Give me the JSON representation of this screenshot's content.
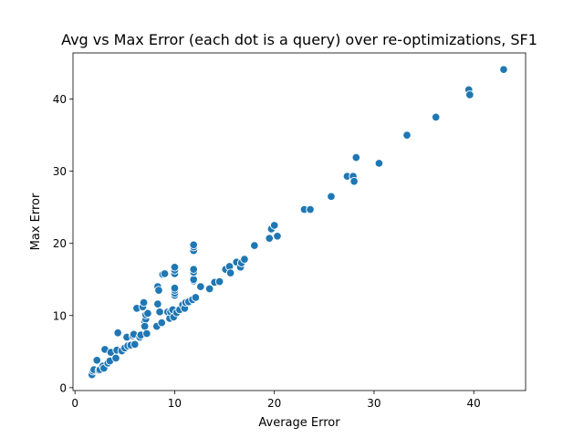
{
  "chart_data": {
    "type": "scatter",
    "title": "Avg vs Max Error (each dot is a query) over re-optimizations, SF1",
    "xlabel": "Average Error",
    "ylabel": "Max Error",
    "xlim": [
      -0.2,
      45.2
    ],
    "ylim": [
      -0.4,
      46.4
    ],
    "xticks": [
      0,
      10,
      20,
      30,
      40
    ],
    "yticks": [
      0,
      10,
      20,
      30,
      40
    ],
    "grid": false,
    "marker_color": "#1f77b4",
    "marker_edge": "#ffffff",
    "points": [
      [
        1.7,
        1.8
      ],
      [
        1.8,
        2.3
      ],
      [
        1.9,
        2.5
      ],
      [
        2.2,
        3.8
      ],
      [
        2.4,
        2.4
      ],
      [
        2.5,
        2.5
      ],
      [
        2.8,
        3.0
      ],
      [
        2.9,
        2.7
      ],
      [
        3.0,
        5.3
      ],
      [
        3.3,
        3.4
      ],
      [
        3.5,
        3.7
      ],
      [
        3.6,
        4.9
      ],
      [
        4.1,
        4.1
      ],
      [
        4.2,
        5.2
      ],
      [
        4.3,
        7.6
      ],
      [
        4.7,
        5.1
      ],
      [
        5.0,
        5.5
      ],
      [
        5.2,
        7.0
      ],
      [
        5.3,
        5.8
      ],
      [
        5.6,
        5.9
      ],
      [
        5.8,
        7.2
      ],
      [
        5.9,
        7.4
      ],
      [
        6.0,
        6.0
      ],
      [
        6.2,
        11.0
      ],
      [
        6.5,
        7.0
      ],
      [
        6.6,
        7.3
      ],
      [
        6.8,
        11.2
      ],
      [
        6.9,
        11.8
      ],
      [
        7.0,
        9.2
      ],
      [
        7.1,
        9.5
      ],
      [
        7.1,
        10.1
      ],
      [
        7.0,
        8.5
      ],
      [
        7.2,
        7.5
      ],
      [
        7.3,
        10.3
      ],
      [
        8.2,
        8.5
      ],
      [
        8.3,
        11.6
      ],
      [
        8.3,
        14.0
      ],
      [
        8.4,
        13.5
      ],
      [
        8.5,
        10.5
      ],
      [
        8.7,
        9.0
      ],
      [
        8.8,
        15.7
      ],
      [
        9.0,
        15.8
      ],
      [
        9.3,
        10.5
      ],
      [
        9.5,
        9.6
      ],
      [
        9.6,
        10.5
      ],
      [
        9.8,
        10.8
      ],
      [
        9.9,
        9.8
      ],
      [
        10.0,
        12.8
      ],
      [
        10.0,
        13.1
      ],
      [
        10.0,
        13.5
      ],
      [
        10.0,
        13.8
      ],
      [
        10.0,
        15.8
      ],
      [
        10.0,
        16.3
      ],
      [
        10.0,
        16.7
      ],
      [
        10.2,
        10.4
      ],
      [
        10.5,
        10.8
      ],
      [
        10.8,
        11.5
      ],
      [
        11.0,
        11.0
      ],
      [
        11.1,
        11.8
      ],
      [
        11.4,
        11.9
      ],
      [
        11.8,
        12.3
      ],
      [
        11.8,
        12.2
      ],
      [
        11.9,
        14.8
      ],
      [
        11.9,
        15.0
      ],
      [
        11.9,
        16.0
      ],
      [
        11.9,
        16.4
      ],
      [
        11.9,
        19.0
      ],
      [
        11.9,
        19.5
      ],
      [
        11.9,
        19.8
      ],
      [
        12.1,
        12.5
      ],
      [
        12.6,
        14.0
      ],
      [
        13.5,
        13.7
      ],
      [
        14.0,
        14.6
      ],
      [
        14.5,
        14.7
      ],
      [
        15.1,
        16.4
      ],
      [
        15.5,
        16.8
      ],
      [
        15.6,
        15.9
      ],
      [
        16.2,
        17.4
      ],
      [
        16.6,
        16.7
      ],
      [
        16.7,
        17.3
      ],
      [
        17.0,
        17.8
      ],
      [
        18.0,
        19.7
      ],
      [
        19.5,
        20.7
      ],
      [
        19.7,
        22.0
      ],
      [
        20.0,
        22.5
      ],
      [
        20.3,
        21.0
      ],
      [
        23.0,
        24.7
      ],
      [
        23.6,
        24.7
      ],
      [
        25.7,
        26.5
      ],
      [
        27.3,
        29.3
      ],
      [
        27.9,
        29.3
      ],
      [
        28.0,
        28.6
      ],
      [
        28.2,
        31.9
      ],
      [
        30.5,
        31.1
      ],
      [
        33.3,
        34.9
      ],
      [
        33.3,
        35.0
      ],
      [
        36.2,
        37.5
      ],
      [
        39.5,
        41.3
      ],
      [
        39.6,
        40.6
      ],
      [
        43.0,
        44.1
      ]
    ]
  }
}
